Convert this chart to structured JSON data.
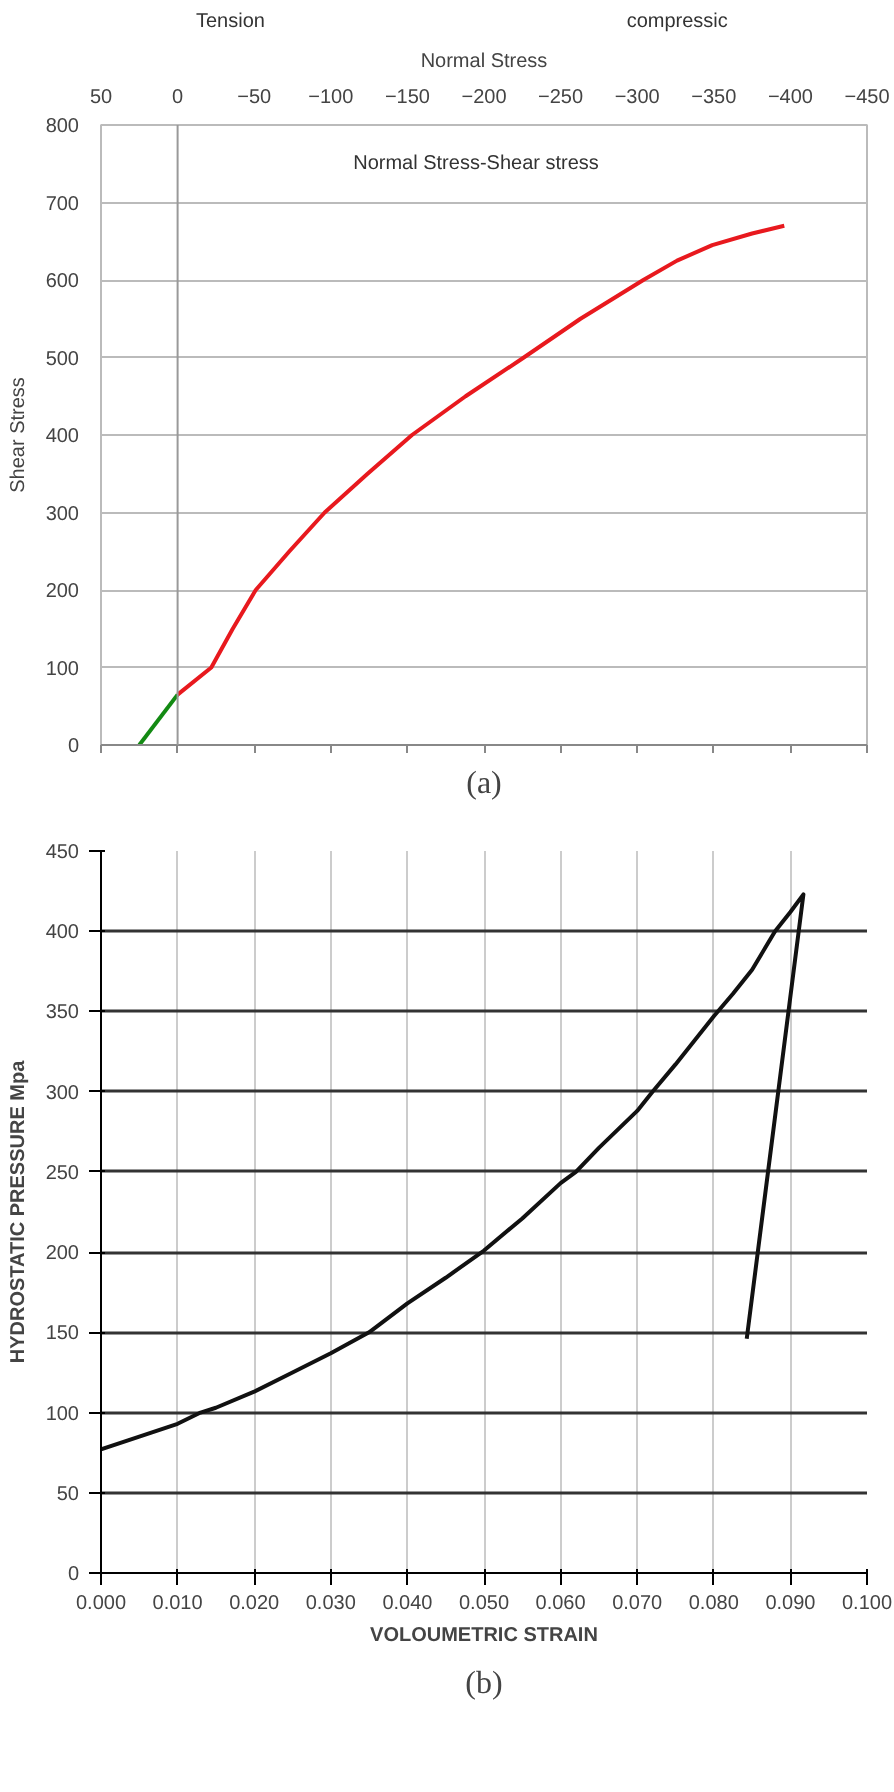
{
  "chart_data": [
    {
      "type": "line",
      "xlabel": "Normal Stress",
      "ylabel": "Shear Stress",
      "xlim": [
        50,
        -450
      ],
      "ylim": [
        0,
        800
      ],
      "xticks": [
        50,
        0,
        -50,
        -100,
        -150,
        -200,
        -250,
        -300,
        -350,
        -400,
        -450
      ],
      "yticks": [
        0,
        100,
        200,
        300,
        400,
        500,
        600,
        700,
        800
      ],
      "grid": "y",
      "series": [
        {
          "color": "#138a13",
          "x": [
            25,
            0
          ],
          "values": [
            0,
            65
          ]
        },
        {
          "color": "#e8191e",
          "x": [
            0,
            -22,
            -36,
            -51,
            -73,
            -96,
            -124,
            -153,
            -188,
            -226,
            -263,
            -304,
            -326,
            -349,
            -375,
            -396
          ],
          "values": [
            65,
            100,
            150,
            200,
            250,
            300,
            350,
            400,
            450,
            500,
            550,
            600,
            625,
            645,
            660,
            670
          ]
        }
      ],
      "ref_lines": [
        {
          "axis": "x",
          "value": 0,
          "color": "#999999"
        }
      ],
      "annotations": [
        "Tension",
        "compressic",
        "Normal Stress-Shear stress",
        "(a)"
      ]
    },
    {
      "type": "line",
      "xlabel": "VOLOUMETRIC STRAIN",
      "ylabel": "HYDROSTATIC PRESSURE Mpa",
      "xlim": [
        0,
        0.1
      ],
      "ylim": [
        0,
        450
      ],
      "xticks": [
        {
          "value": 0,
          "label": "0.000"
        },
        {
          "value": 0.01,
          "label": "0.010"
        },
        {
          "value": 0.02,
          "label": "0.020"
        },
        {
          "value": 0.03,
          "label": "0.030"
        },
        {
          "value": 0.04,
          "label": "0.040"
        },
        {
          "value": 0.05,
          "label": "0.050"
        },
        {
          "value": 0.06,
          "label": "0.060"
        },
        {
          "value": 0.07,
          "label": "0.070"
        },
        {
          "value": 0.08,
          "label": "0.080"
        },
        {
          "value": 0.09,
          "label": "0.090"
        },
        {
          "value": 0.1,
          "label": "0.100"
        }
      ],
      "yticks": [
        0,
        50,
        100,
        150,
        200,
        250,
        300,
        350,
        400,
        450
      ],
      "grid": true,
      "series": [
        {
          "color": "#111111",
          "x": [
            0,
            0.005,
            0.01,
            0.013,
            0.015,
            0.02,
            0.025,
            0.03,
            0.035,
            0.04,
            0.045,
            0.05,
            0.055,
            0.06,
            0.062,
            0.065,
            0.07,
            0.072,
            0.075,
            0.08,
            0.0825,
            0.085,
            0.088,
            0.09,
            0.0917,
            0.0843
          ],
          "values": [
            77,
            85,
            93,
            100,
            103,
            113,
            125,
            137,
            150,
            168,
            184,
            201,
            221,
            243,
            250,
            265,
            288,
            300,
            317,
            347,
            361,
            376,
            400,
            412,
            423,
            146
          ]
        }
      ],
      "annotations": [
        "(b)"
      ]
    }
  ]
}
